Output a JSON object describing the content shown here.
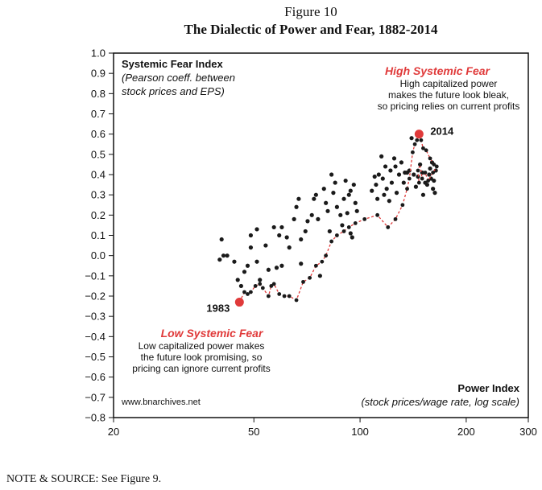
{
  "figure": {
    "number": "Figure 10",
    "title": "The Dialectic of Power and Fear, 1882-2014",
    "note": "NOTE & SOURCE: See Figure 9."
  },
  "chart_data": {
    "type": "scatter",
    "x_scale": "log",
    "xlim": [
      20,
      300
    ],
    "ylim": [
      -0.8,
      1.0
    ],
    "x_ticks": [
      20,
      50,
      100,
      200,
      300
    ],
    "y_ticks": [
      1.0,
      0.9,
      0.8,
      0.7,
      0.6,
      0.5,
      0.4,
      0.3,
      0.2,
      0.1,
      0.0,
      -0.1,
      -0.2,
      -0.3,
      -0.4,
      -0.5,
      -0.6,
      -0.7,
      -0.8
    ],
    "y_tick_labels": [
      "1.0",
      "0.9",
      "0.8",
      "0.7",
      "0.6",
      "0.5",
      "0.4",
      "0.3",
      "0.2",
      "0.1",
      "0.0",
      "−0.1",
      "−0.2",
      "−0.3",
      "−0.4",
      "−0.5",
      "−0.6",
      "−0.7",
      "−0.8"
    ],
    "x_tick_labels": [
      "20",
      "50",
      "100",
      "200",
      "300"
    ],
    "ylabel": "Systemic Fear Index",
    "ylabel_sub": "(Pearson coeff. between stock prices and EPS)",
    "xlabel": "Power Index",
    "xlabel_sub": "(stock prices/wage rate, log scale)",
    "grid": false,
    "colors": {
      "points": "#1a1a1a",
      "highlight": "#e03a3a",
      "path": "#e03a3a"
    },
    "series": [
      {
        "values": [
          [
            40.5,
            0.08
          ],
          [
            40,
            -0.02
          ],
          [
            41,
            0.0
          ],
          [
            42,
            0.0
          ],
          [
            44,
            -0.03
          ],
          [
            45,
            -0.12
          ],
          [
            46,
            -0.15
          ],
          [
            47,
            -0.08
          ],
          [
            48,
            -0.05
          ],
          [
            49,
            0.04
          ],
          [
            49,
            0.1
          ],
          [
            51,
            -0.03
          ],
          [
            51,
            0.13
          ],
          [
            52,
            -0.12
          ],
          [
            54,
            0.05
          ],
          [
            55,
            -0.07
          ],
          [
            57,
            0.14
          ],
          [
            58,
            -0.06
          ],
          [
            59,
            0.1
          ],
          [
            60,
            -0.05
          ],
          [
            60,
            0.14
          ],
          [
            62,
            0.09
          ],
          [
            63,
            0.04
          ],
          [
            65,
            0.18
          ],
          [
            66,
            0.24
          ],
          [
            67,
            0.28
          ],
          [
            68,
            -0.04
          ],
          [
            68,
            0.08
          ],
          [
            70,
            0.12
          ],
          [
            71,
            0.17
          ],
          [
            73,
            0.2
          ],
          [
            74,
            0.28
          ],
          [
            75,
            0.3
          ],
          [
            76,
            0.18
          ],
          [
            77,
            -0.1
          ],
          [
            79,
            0.33
          ],
          [
            80,
            0.26
          ],
          [
            81,
            0.22
          ],
          [
            82,
            0.12
          ],
          [
            83,
            0.4
          ],
          [
            84,
            0.31
          ],
          [
            85,
            0.36
          ],
          [
            86,
            0.24
          ],
          [
            88,
            0.2
          ],
          [
            89,
            0.15
          ],
          [
            90,
            0.28
          ],
          [
            91,
            0.37
          ],
          [
            92,
            0.21
          ],
          [
            93,
            0.3
          ],
          [
            94,
            0.11
          ],
          [
            94,
            0.32
          ],
          [
            95,
            0.09
          ],
          [
            96,
            0.35
          ],
          [
            97,
            0.26
          ],
          [
            98,
            0.22
          ],
          [
            108,
            0.32
          ],
          [
            110,
            0.39
          ],
          [
            111,
            0.35
          ],
          [
            112,
            0.28
          ],
          [
            113,
            0.4
          ],
          [
            115,
            0.49
          ],
          [
            116,
            0.38
          ],
          [
            117,
            0.3
          ],
          [
            118,
            0.44
          ],
          [
            119,
            0.33
          ],
          [
            121,
            0.27
          ],
          [
            122,
            0.42
          ],
          [
            123,
            0.36
          ],
          [
            125,
            0.48
          ],
          [
            126,
            0.44
          ],
          [
            127,
            0.31
          ],
          [
            129,
            0.4
          ],
          [
            131,
            0.46
          ],
          [
            133,
            0.36
          ],
          [
            134,
            0.41
          ],
          [
            136,
            0.41
          ],
          [
            138,
            0.42
          ],
          [
            140,
            0.58
          ],
          [
            142,
            0.4
          ],
          [
            144,
            0.34
          ],
          [
            146,
            0.39
          ],
          [
            148,
            0.45
          ],
          [
            150,
            0.41
          ],
          [
            151,
            0.3
          ],
          [
            153,
            0.36
          ],
          [
            155,
            0.35
          ],
          [
            157,
            0.4
          ],
          [
            158,
            0.43
          ],
          [
            159,
            0.38
          ],
          [
            160,
            0.46
          ],
          [
            161,
            0.33
          ],
          [
            162,
            0.37
          ],
          [
            163,
            0.31
          ],
          [
            164,
            0.42
          ]
        ]
      },
      {
        "values": [
          [
            45.5,
            -0.23
          ],
          [
            47,
            -0.18
          ],
          [
            48,
            -0.19
          ],
          [
            49,
            -0.18
          ],
          [
            50.5,
            -0.15
          ],
          [
            52,
            -0.14
          ],
          [
            53,
            -0.16
          ],
          [
            55,
            -0.2
          ],
          [
            56,
            -0.15
          ],
          [
            57,
            -0.14
          ],
          [
            59,
            -0.19
          ],
          [
            61,
            -0.2
          ],
          [
            63,
            -0.2
          ],
          [
            66,
            -0.22
          ],
          [
            69,
            -0.13
          ],
          [
            72,
            -0.11
          ],
          [
            75,
            -0.05
          ],
          [
            78,
            -0.03
          ],
          [
            80,
            0.0
          ],
          [
            83,
            0.07
          ],
          [
            86,
            0.1
          ],
          [
            90,
            0.12
          ],
          [
            93,
            0.14
          ],
          [
            97,
            0.16
          ],
          [
            103,
            0.18
          ],
          [
            112,
            0.2
          ],
          [
            120,
            0.14
          ],
          [
            126,
            0.18
          ],
          [
            132,
            0.25
          ],
          [
            136,
            0.33
          ],
          [
            138,
            0.38
          ],
          [
            141,
            0.51
          ],
          [
            143,
            0.55
          ],
          [
            145,
            0.57
          ],
          [
            147,
            0.6
          ],
          [
            149,
            0.57
          ],
          [
            151,
            0.53
          ],
          [
            154,
            0.52
          ],
          [
            158,
            0.48
          ],
          [
            162,
            0.45
          ],
          [
            165,
            0.44
          ],
          [
            161,
            0.41
          ],
          [
            156,
            0.37
          ],
          [
            153,
            0.41
          ],
          [
            150,
            0.38
          ],
          [
            148,
            0.45
          ],
          [
            146,
            0.42
          ],
          [
            147,
            0.36
          ]
        ]
      }
    ],
    "highlights": [
      {
        "label": "1983",
        "x": 45.5,
        "y": -0.23
      },
      {
        "label": "2014",
        "x": 147,
        "y": 0.6
      }
    ],
    "annotations": {
      "high": {
        "title": "High Systemic Fear",
        "lines": [
          "High capitalized power",
          "makes the future look bleak,",
          "so pricing relies on current profits"
        ]
      },
      "low": {
        "title": "Low Systemic Fear",
        "lines": [
          "Low capitalized power makes",
          "the future look promising, so",
          "pricing can ignore current profits"
        ]
      },
      "source_url": "www.bnarchives.net"
    }
  }
}
